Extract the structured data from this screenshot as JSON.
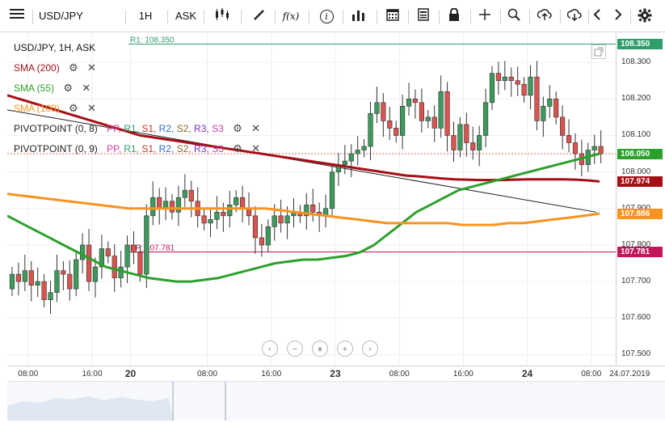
{
  "toolbar": {
    "symbol": "USD/JPY",
    "timeframe": "1H",
    "price_type": "ASK",
    "icons": [
      "menu-icon",
      "candles-icon",
      "draw-icon",
      "function-icon",
      "info-icon",
      "volume-bars-icon",
      "calendar-icon",
      "document-icon",
      "lock-icon",
      "crosshair-icon",
      "zoom-icon",
      "upload-icon",
      "download-icon",
      "chevron-left-icon",
      "chevron-right-icon",
      "gear-icon"
    ],
    "fx_label": "f(x)",
    "info_label": "i"
  },
  "legend": {
    "title": "USD/JPY, 1H, ASK",
    "sma200": "SMA (200)",
    "sma55": "SMA (55)",
    "sma100": "SMA (100)",
    "pivot1_name": "PIVOTPOINT (0, 8)",
    "pivot2_name": "PIVOTPOINT (0, 9)",
    "pivot_items": [
      {
        "label": "PP",
        "color": "#d23c9a"
      },
      {
        "label": "R1",
        "color": "#2e9e6b"
      },
      {
        "label": "S1",
        "color": "#c0392b"
      },
      {
        "label": "R2",
        "color": "#2f6fbf"
      },
      {
        "label": "S2",
        "color": "#8e6a2b"
      },
      {
        "label": "R3",
        "color": "#7a2fbf"
      },
      {
        "label": "S3",
        "color": "#c73fa8"
      }
    ]
  },
  "colors": {
    "sma200": "#a50f15",
    "sma55": "#2ca02c",
    "sma100": "#f7931e",
    "up": "#3d9a5c",
    "down": "#d9534f",
    "r1_line": "#2e9e6b",
    "pp_line": "#c2185b",
    "trend": "#222222"
  },
  "annotations": {
    "r1_text": "R1: 108.350",
    "pp_text": "PP: 107.781"
  },
  "price_labels": [
    {
      "value": "108.350",
      "price": 108.35,
      "bg": "#2e9e6b"
    },
    {
      "value": "108.050",
      "price": 108.05,
      "bg": "#2ca02c"
    },
    {
      "value": "107.974",
      "price": 107.974,
      "bg": "#a50f15"
    },
    {
      "value": "107.886",
      "price": 107.886,
      "bg": "#f7931e"
    },
    {
      "value": "107.781",
      "price": 107.781,
      "bg": "#c2185b"
    }
  ],
  "zoom_controls": [
    "‹",
    "−",
    "⏸",
    "+",
    "›"
  ],
  "chart_data": {
    "type": "candlestick",
    "symbol": "USD/JPY",
    "ylim": [
      107.47,
      108.38
    ],
    "y_ticks": [
      108.3,
      108.2,
      108.1,
      108.0,
      107.9,
      107.8,
      107.7,
      107.6,
      107.5
    ],
    "y_tick_labels": [
      "108.300",
      "108.200",
      "108.100",
      "108.000",
      "107.900",
      "107.800",
      "107.700",
      "107.600",
      "107.500"
    ],
    "x_ticks": [
      "08:00",
      "16:00",
      "20",
      "08:00",
      "16:00",
      "23",
      "08:00",
      "16:00",
      "24",
      "08:00",
      "24.07.2019"
    ],
    "x_tick_bold": [
      false,
      false,
      true,
      false,
      false,
      true,
      false,
      false,
      true,
      false,
      false
    ],
    "x_range": [
      0,
      90
    ],
    "x_tick_positions": [
      2.5,
      12.5,
      18.5,
      30.5,
      40.5,
      50.5,
      60.5,
      70.5,
      80.5,
      90.5,
      96.5
    ],
    "candles_close": [
      107.72,
      107.7,
      107.73,
      107.69,
      107.7,
      107.65,
      107.67,
      107.73,
      107.72,
      107.68,
      107.76,
      107.8,
      107.7,
      107.74,
      107.79,
      107.77,
      107.71,
      107.74,
      107.8,
      107.78,
      107.72,
      107.88,
      107.93,
      107.9,
      107.92,
      107.89,
      107.93,
      107.95,
      107.92,
      107.88,
      107.86,
      107.87,
      107.89,
      107.88,
      107.91,
      107.93,
      107.9,
      107.88,
      107.82,
      107.8,
      107.85,
      107.88,
      107.86,
      107.88,
      107.89,
      107.88,
      107.91,
      107.89,
      107.88,
      107.9,
      108.0,
      108.02,
      108.03,
      108.05,
      108.06,
      108.07,
      108.16,
      108.19,
      108.14,
      108.12,
      108.1,
      108.18,
      108.2,
      108.19,
      108.14,
      108.15,
      108.12,
      108.22,
      108.1,
      108.06,
      108.13,
      108.08,
      108.06,
      108.1,
      108.19,
      108.27,
      108.25,
      108.26,
      108.25,
      108.24,
      108.21,
      108.26,
      108.14,
      108.18,
      108.2,
      108.15,
      108.1,
      108.08,
      108.05,
      108.02,
      108.06,
      108.07,
      108.05
    ],
    "series": [
      {
        "name": "SMA (200)",
        "values": [
          108.21,
          108.2,
          108.19,
          108.18,
          108.17,
          108.16,
          108.15,
          108.14,
          108.13,
          108.12,
          108.11,
          108.1,
          108.095,
          108.09,
          108.085,
          108.08,
          108.075,
          108.07,
          108.065,
          108.06,
          108.055,
          108.05,
          108.045,
          108.04,
          108.035,
          108.03,
          108.025,
          108.02,
          108.015,
          108.01,
          108.005,
          108.0,
          107.995,
          107.99,
          107.988,
          107.985,
          107.982,
          107.98,
          107.979,
          107.978,
          107.978,
          107.978,
          107.979,
          107.98,
          107.98,
          107.98,
          107.98,
          107.979,
          107.977,
          107.974
        ]
      },
      {
        "name": "SMA (55)",
        "values": [
          107.88,
          107.86,
          107.84,
          107.82,
          107.8,
          107.78,
          107.76,
          107.74,
          107.73,
          107.72,
          107.71,
          107.705,
          107.7,
          107.7,
          107.705,
          107.71,
          107.72,
          107.73,
          107.74,
          107.75,
          107.755,
          107.76,
          107.76,
          107.765,
          107.77,
          107.78,
          107.8,
          107.83,
          107.86,
          107.89,
          107.91,
          107.93,
          107.95,
          107.96,
          107.97,
          107.98,
          107.99,
          108.0,
          108.01,
          108.02,
          108.03,
          108.04,
          108.05
        ]
      },
      {
        "name": "SMA (100)",
        "values": [
          107.94,
          107.935,
          107.93,
          107.925,
          107.92,
          107.915,
          107.91,
          107.905,
          107.9,
          107.9,
          107.9,
          107.9,
          107.9,
          107.9,
          107.9,
          107.9,
          107.9,
          107.9,
          107.895,
          107.89,
          107.885,
          107.88,
          107.875,
          107.87,
          107.865,
          107.86,
          107.86,
          107.86,
          107.86,
          107.86,
          107.855,
          107.855,
          107.855,
          107.86,
          107.86,
          107.865,
          107.87,
          107.875,
          107.88,
          107.886
        ]
      }
    ],
    "pivot_r1": 108.35,
    "pivot_pp": 107.781,
    "trendline": {
      "start": [
        0,
        108.17
      ],
      "end": [
        90,
        107.89
      ]
    }
  }
}
